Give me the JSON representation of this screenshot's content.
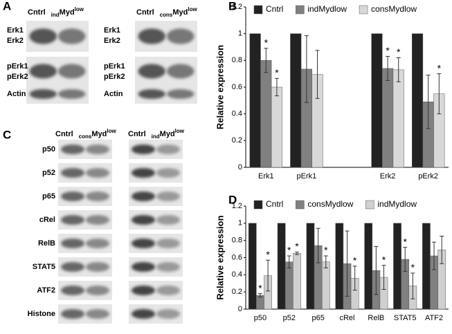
{
  "panels": {
    "a": "A",
    "b": "B",
    "c": "C",
    "d": "D"
  },
  "blots_a": [
    {
      "header": {
        "ctrl": "Cntrl",
        "sub": "ind",
        "main": "Myd",
        "sup": "low"
      },
      "rows": [
        [
          "Erk1",
          "Erk2"
        ],
        [
          "pErk1",
          "pErk2"
        ],
        [
          "Actin"
        ]
      ]
    },
    {
      "header": {
        "ctrl": "Cntrl",
        "sub": "cons",
        "main": "Myd",
        "sup": "low"
      },
      "rows": [
        [
          "Erk1",
          "Erk2"
        ],
        [
          "pErk1",
          "pErk2"
        ],
        [
          "Actin"
        ]
      ]
    }
  ],
  "blots_c": {
    "headers": [
      {
        "ctrl": "Cntrl",
        "sub": "cons",
        "main": "Myd",
        "sup": "low"
      },
      {
        "ctrl": "Cntrl",
        "sub": "ind",
        "main": "Myd",
        "sup": "low"
      }
    ],
    "rows": [
      "p50",
      "p52",
      "p65",
      "cRel",
      "RelB",
      "STAT5",
      "ATF2",
      "Histone"
    ]
  },
  "chart_data": [
    {
      "type": "bar",
      "y_label": "Relative expression",
      "categories": [
        "Erk1",
        "pErk1",
        null,
        "Erk2",
        "pErk2"
      ],
      "ylim": [
        0,
        1.2
      ],
      "yticks": [
        0,
        0.2,
        0.4,
        0.6,
        0.8,
        1,
        1.2
      ],
      "series": [
        {
          "name": "Cntrl",
          "color": "#222222",
          "values": [
            1,
            1,
            null,
            1,
            1
          ]
        },
        {
          "name": "indMydlow",
          "color": "#808080",
          "values": [
            0.8,
            0.735,
            null,
            0.74,
            0.49
          ],
          "errors": [
            0.09,
            0.25,
            null,
            0.09,
            0.2
          ],
          "annotations": [
            "*",
            null,
            null,
            "*",
            null
          ]
        },
        {
          "name": "consMydlow",
          "color": "#d8d8d8",
          "values": [
            0.6,
            0.695,
            null,
            0.73,
            0.55
          ],
          "errors": [
            0.065,
            0.18,
            null,
            0.09,
            0.15
          ],
          "annotations": [
            "*",
            null,
            null,
            "*",
            "*"
          ]
        }
      ]
    },
    {
      "type": "bar",
      "y_label": "Relative expression",
      "categories": [
        "p50",
        "p52",
        "p65",
        "cRel",
        "RelB",
        "STAT5",
        "ATF2"
      ],
      "ylim": [
        0,
        1.2
      ],
      "yticks": [
        0,
        0.2,
        0.4,
        0.6,
        0.8,
        1,
        1.2
      ],
      "series": [
        {
          "name": "Cntrl",
          "color": "#222222",
          "values": [
            1,
            1,
            1,
            1,
            1,
            1,
            1
          ]
        },
        {
          "name": "consMydlow",
          "color": "#808080",
          "values": [
            0.16,
            0.55,
            0.74,
            0.53,
            0.45,
            0.58,
            0.62
          ],
          "errors": [
            0.02,
            0.07,
            0.2,
            0.38,
            0.28,
            0.14,
            0.16
          ],
          "annotations": [
            "*",
            "*",
            null,
            null,
            null,
            "*",
            null
          ]
        },
        {
          "name": "indMydlow",
          "color": "#d0d0d0",
          "values": [
            0.39,
            0.65,
            0.55,
            0.36,
            0.37,
            0.27,
            0.69
          ],
          "errors": [
            0.18,
            0.015,
            0.07,
            0.14,
            0.14,
            0.15,
            0.16
          ],
          "annotations": [
            "*",
            "*",
            "*",
            "*",
            "*",
            "*",
            null
          ]
        }
      ]
    }
  ]
}
